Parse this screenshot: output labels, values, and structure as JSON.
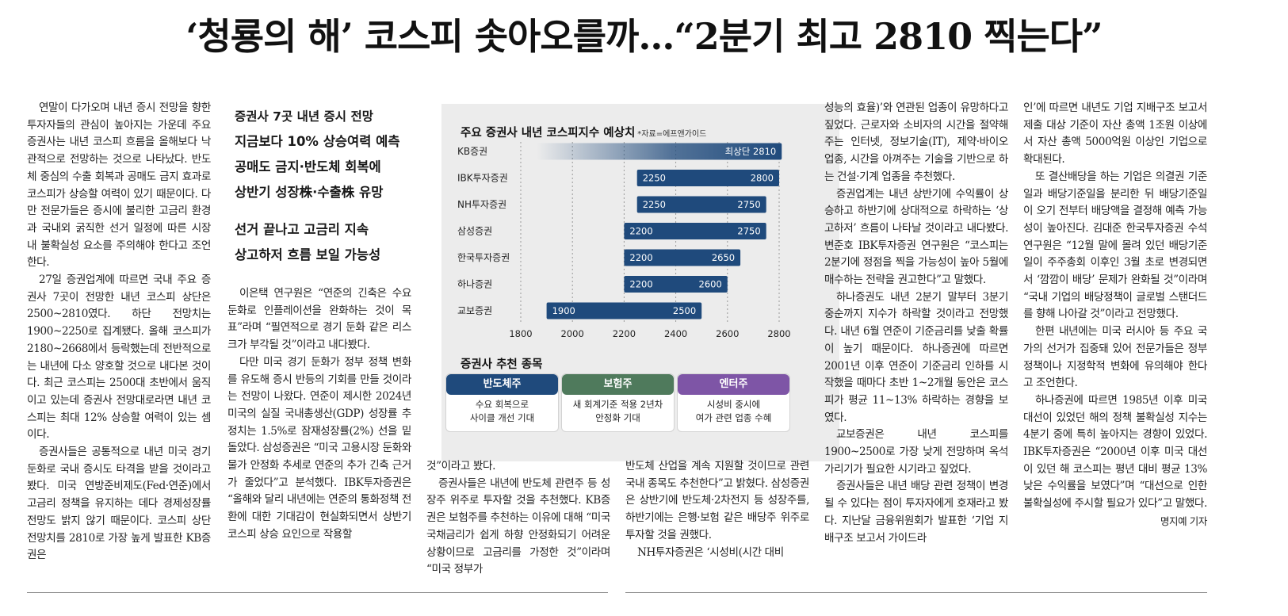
{
  "headline": "‘청룡의 해’ 코스피 솟아오를까…“2분기 최고 2810 찍는다”",
  "subheads": {
    "lines_a": [
      "증권사 7곳 내년 증시 전망",
      "지금보다 10% 상승여력 예측",
      "공매도 금지·반도체 회복에",
      "상반기 성장株·수출株 유망"
    ],
    "lines_b": [
      "선거 끝나고 고금리 지속",
      "상고하저 흐름 보일 가능성"
    ]
  },
  "col1": {
    "p1": "연말이 다가오며 내년 증시 전망을 향한 투자자들의 관심이 높아지는 가운데 주요 증권사는 내년 코스피 흐름을 올해보다 낙관적으로 전망하는 것으로 나타났다. 반도체 중심의 수출 회복과 공매도 금지 효과로 코스피가 상승할 여력이 있기 때문이다. 다만 전문가들은 증시에 불리한 고금리 환경과 국내외 굵직한 선거 일정에 따른 시장 내 불확실성 요소를 주의해야 한다고 조언한다.",
    "p2": "27일 증권업계에 따르면 국내 주요 증권사 7곳이 전망한 내년 코스피 상단은 2500~2810였다. 하단 전망치는 1900~2250로 집계됐다. 올해 코스피가 2180~2668에서 등락했는데 전반적으로는 내년에 다소 양호할 것으로 내다본 것이다. 최근 코스피는 2500대 초반에서 움직이고 있는데 증권사 전망대로라면 내년 코스피는 최대 12% 상승할 여력이 있는 셈이다.",
    "p3": "증권사들은 공통적으로 내년 미국 경기 둔화로 국내 증시도 타격을 받을 것이라고 봤다. 미국 연방준비제도(Fed·연준)에서 고금리 정책을 유지하는 데다 경제성장률 전망도 밝지 않기 때문이다. 코스피 상단 전망치를 2810로 가장 높게 발표한 KB증권은"
  },
  "col2": {
    "p1": "이은택 연구원은 “연준의 긴축은 수요 둔화로 인플레이션을 완화하는 것이 목표”라며 “필연적으로 경기 둔화 같은 리스크가 부각될 것”이라고 내다봤다.",
    "p2": "다만 미국 경기 둔화가 정부 정책 변화를 유도해 증시 반등의 기회를 만들 것이라는 전망이 나왔다. 연준이 제시한 2024년 미국의 실질 국내총생산(GDP) 성장률 추정치는 1.5%로 잠재성장률(2%) 선을 밑돌았다. 삼성증권은 “미국 고용시장 둔화와 물가 안정화 추세로 연준의 추가 긴축 근거가 줄었다”고 분석했다. IBK투자증권은 “올해와 달리 내년에는 연준의 통화정책 전환에 대한 기대감이 현실화되면서 상반기 코스피 상승 요인으로 작용할"
  },
  "col3": {
    "p1": "것”이라고 봤다.",
    "p2": "증권사들은 내년에 반도체 관련주 등 성장주 위주로 투자할 것을 추천했다. KB증권은 보험주를 추천하는 이유에 대해 “미국 국채금리가 쉽게 하향 안정화되기 어려운 상황이므로 고금리를 가정한 것”이라며 “미국 정부가"
  },
  "col4": {
    "p1": "반도체 산업을 계속 지원할 것이므로 관련 국내 종목도 추천한다”고 밝혔다. 삼성증권은 상반기에 반도체·2차전지 등 성장주를, 하반기에는 은행·보험 같은 배당주 위주로 투자할 것을 권했다.",
    "p2": "NH투자증권은 ‘시성비(시간 대비"
  },
  "col5": {
    "p1": "성능의 효율)’와 연관된 업종이 유망하다고 짚었다. 근로자와 소비자의 시간을 절약해주는 인터넷, 정보기술(IT), 제약·바이오 업종, 시간을 아껴주는 기술을 기반으로 하는 건설·기계 업종을 추천했다.",
    "p2": "증권업계는 내년 상반기에 수익률이 상승하고 하반기에 상대적으로 하락하는 ‘상고하저’ 흐름이 나타날 것이라고 내다봤다. 변준호 IBK투자증권 연구원은 “코스피는 2분기에 정점을 찍을 가능성이 높아 5월에 매수하는 전략을 권고한다”고 말했다.",
    "p3": "하나증권도 내년 2분기 말부터 3분기 중순까지 지수가 하락할 것이라고 전망했다. 내년 6월 연준이 기준금리를 낮출 확률이 높기 때문이다. 하나증권에 따르면 2001년 이후 연준이 기준금리 인하를 시작했을 때마다 초반 1~2개월 동안은 코스피가 평균 11~13% 하락하는 경향을 보였다.",
    "p4": "교보증권은 내년 코스피를 1900~2500로 가장 낮게 전망하며 옥석 가리기가 필요한 시기라고 짚었다.",
    "p5": "증권사들은 내년 배당 관련 정책이 변경될 수 있다는 점이 투자자에게 호재라고 봤다. 지난달 금융위원회가 발표한 ‘기업 지배구조 보고서 가이드라"
  },
  "col6": {
    "p1": "인’에 따르면 내년도 기업 지배구조 보고서 제출 대상 기준이 자산 총액 1조원 이상에서 자산 총액 5000억원 이상인 기업으로 확대된다.",
    "p2": "또 결산배당을 하는 기업은 의결권 기준일과 배당기준일을 분리한 뒤 배당기준일이 오기 전부터 배당액을 결정해 예측 가능성이 높아진다. 김대준 한국투자증권 수석연구원은 “12월 말에 몰려 있던 배당기준일이 주주총회 이후인 3월 초로 변경되면서 ‘깜깜이 배당’ 문제가 완화될 것”이라며 “국내 기업의 배당정책이 글로벌 스탠더드를 향해 나아갈 것”이라고 전망했다.",
    "p3": "한편 내년에는 미국 러시아 등 주요 국가의 선거가 집중돼 있어 전문가들은 정부 정책이나 지정학적 변화에 유의해야 한다고 조언한다.",
    "p4": "하나증권에 따르면 1985년 이후 미국 대선이 있었던 해의 정책 불확실성 지수는 4분기 중에 특히 높아지는 경향이 있었다. IBK투자증권은 “2000년 이후 미국 대선이 있던 해 코스피는 평년 대비 평균 13% 낮은 수익률을 보였다”며 “대선으로 인한 불확실성에 주시할 필요가 있다”고 말했다.",
    "byline": "명지예 기자"
  },
  "chart_data": {
    "type": "bar",
    "title": "주요 증권사 내년 코스피지수 예상치",
    "source": "*자료=에프앤가이드",
    "categories": [
      "KB증권",
      "IBK투자증권",
      "NH투자증권",
      "삼성증권",
      "한국투자증권",
      "하나증권",
      "교보증권"
    ],
    "low": [
      null,
      2250,
      2250,
      2200,
      2200,
      2200,
      1900
    ],
    "high": [
      2810,
      2800,
      2750,
      2750,
      2650,
      2600,
      2500
    ],
    "high_label_prefix": [
      "최상단 ",
      "",
      "",
      "",
      "",
      "",
      ""
    ],
    "xlim": [
      1800,
      2800
    ],
    "xticks": [
      "1800",
      "2000",
      "2200",
      "2400",
      "2600",
      "2800"
    ],
    "colors": {
      "bar": "#1f4a7c",
      "grid": "#9a9a9a"
    }
  },
  "recommend": {
    "title": "증권사 추천 종목",
    "cards": [
      {
        "head": "반도체주",
        "line1": "수요 회복으로",
        "line2": "사이클 개선 기대",
        "color": "#1f4a7c"
      },
      {
        "head": "보험주",
        "line1": "새 회계기준 적용 2년차",
        "line2": "안정화 기대",
        "color": "#4f7a5c"
      },
      {
        "head": "엔터주",
        "line1": "시성비 중시에",
        "line2": "여가 관련 업종 수혜",
        "color": "#7e55a6"
      }
    ]
  }
}
